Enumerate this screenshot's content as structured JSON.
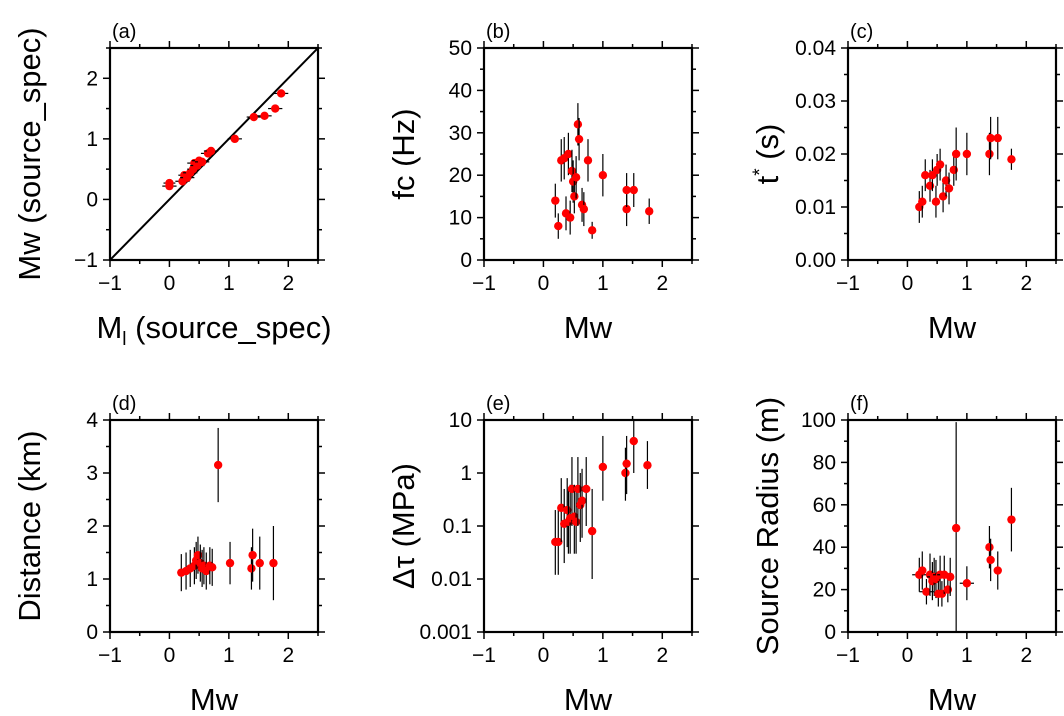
{
  "colors": {
    "point": "#ff0000",
    "axis": "#000000",
    "errorbar": "#000000"
  },
  "chart_data": [
    {
      "id": "a",
      "type": "scatter",
      "panel_label": "(a)",
      "xlabel": "M",
      "xlabel_sub": "l",
      "xlabel_rest": " (source_spec)",
      "ylabel": "Mw (source_spec)",
      "xlim": [
        -1,
        2.5
      ],
      "ylim": [
        -1,
        2.5
      ],
      "yscale": "linear",
      "xticks": [
        -1,
        0,
        1,
        2
      ],
      "xticklabels": [
        "−1",
        "0",
        "1",
        "2"
      ],
      "yticks": [
        -1,
        0,
        1,
        2
      ],
      "yticklabels": [
        "−1",
        "0",
        "1",
        "2"
      ],
      "reference_line": "1:1",
      "points": [
        {
          "x": 0.0,
          "y": 0.22,
          "xe": 0.12,
          "ye": 0.06
        },
        {
          "x": 0.0,
          "y": 0.27,
          "xe": 0.1,
          "ye": 0.06
        },
        {
          "x": 0.22,
          "y": 0.3,
          "xe": 0.12,
          "ye": 0.06
        },
        {
          "x": 0.25,
          "y": 0.4,
          "xe": 0.1,
          "ye": 0.06
        },
        {
          "x": 0.3,
          "y": 0.36,
          "xe": 0.12,
          "ye": 0.06
        },
        {
          "x": 0.35,
          "y": 0.44,
          "xe": 0.12,
          "ye": 0.06
        },
        {
          "x": 0.4,
          "y": 0.5,
          "xe": 0.1,
          "ye": 0.06
        },
        {
          "x": 0.42,
          "y": 0.6,
          "xe": 0.12,
          "ye": 0.06
        },
        {
          "x": 0.47,
          "y": 0.56,
          "xe": 0.12,
          "ye": 0.06
        },
        {
          "x": 0.5,
          "y": 0.64,
          "xe": 0.12,
          "ye": 0.06
        },
        {
          "x": 0.55,
          "y": 0.62,
          "xe": 0.12,
          "ye": 0.06
        },
        {
          "x": 0.65,
          "y": 0.76,
          "xe": 0.12,
          "ye": 0.06
        },
        {
          "x": 0.7,
          "y": 0.8,
          "xe": 0.12,
          "ye": 0.06
        },
        {
          "x": 1.1,
          "y": 1.0,
          "xe": 0.12,
          "ye": 0.06
        },
        {
          "x": 1.42,
          "y": 1.36,
          "xe": 0.12,
          "ye": 0.06
        },
        {
          "x": 1.6,
          "y": 1.38,
          "xe": 0.12,
          "ye": 0.06
        },
        {
          "x": 1.78,
          "y": 1.5,
          "xe": 0.12,
          "ye": 0.06
        },
        {
          "x": 1.88,
          "y": 1.75,
          "xe": 0.12,
          "ye": 0.06
        }
      ]
    },
    {
      "id": "b",
      "type": "scatter",
      "panel_label": "(b)",
      "xlabel": "Mw",
      "ylabel": "fc (Hz)",
      "xlim": [
        -1,
        2.5
      ],
      "ylim": [
        0,
        50
      ],
      "yscale": "linear",
      "xticks": [
        -1,
        0,
        1,
        2
      ],
      "xticklabels": [
        "−1",
        "0",
        "1",
        "2"
      ],
      "yticks": [
        0,
        10,
        20,
        30,
        40,
        50
      ],
      "yticklabels": [
        "0",
        "10",
        "20",
        "30",
        "40",
        "50"
      ],
      "points": [
        {
          "x": 0.2,
          "y": 14,
          "xe": 0.05,
          "ye": 4
        },
        {
          "x": 0.25,
          "y": 8,
          "xe": 0.05,
          "ye": 3
        },
        {
          "x": 0.3,
          "y": 23.5,
          "xe": 0.05,
          "ye": 5
        },
        {
          "x": 0.35,
          "y": 24,
          "xe": 0.05,
          "ye": 5
        },
        {
          "x": 0.38,
          "y": 11,
          "xe": 0.05,
          "ye": 4
        },
        {
          "x": 0.42,
          "y": 25,
          "xe": 0.05,
          "ye": 5
        },
        {
          "x": 0.45,
          "y": 10,
          "xe": 0.05,
          "ye": 4
        },
        {
          "x": 0.48,
          "y": 21,
          "xe": 0.05,
          "ye": 5
        },
        {
          "x": 0.5,
          "y": 18.5,
          "xe": 0.05,
          "ye": 5
        },
        {
          "x": 0.52,
          "y": 15,
          "xe": 0.05,
          "ye": 4
        },
        {
          "x": 0.55,
          "y": 19.5,
          "xe": 0.05,
          "ye": 5
        },
        {
          "x": 0.58,
          "y": 32,
          "xe": 0.05,
          "ye": 5
        },
        {
          "x": 0.6,
          "y": 28.5,
          "xe": 0.05,
          "ye": 5
        },
        {
          "x": 0.65,
          "y": 13,
          "xe": 0.05,
          "ye": 4
        },
        {
          "x": 0.68,
          "y": 12,
          "xe": 0.05,
          "ye": 4
        },
        {
          "x": 0.75,
          "y": 23.5,
          "xe": 0.05,
          "ye": 5
        },
        {
          "x": 0.82,
          "y": 7,
          "xe": 0.05,
          "ye": 2
        },
        {
          "x": 1.0,
          "y": 20,
          "xe": 0.05,
          "ye": 5
        },
        {
          "x": 1.4,
          "y": 12,
          "xe": 0.05,
          "ye": 4
        },
        {
          "x": 1.4,
          "y": 16.5,
          "xe": 0.05,
          "ye": 4
        },
        {
          "x": 1.52,
          "y": 16.5,
          "xe": 0.05,
          "ye": 4
        },
        {
          "x": 1.78,
          "y": 11.5,
          "xe": 0.05,
          "ye": 3
        }
      ]
    },
    {
      "id": "c",
      "type": "scatter",
      "panel_label": "(c)",
      "xlabel": "Mw",
      "ylabel": "t",
      "ylabel_sup": "*",
      "ylabel_rest": " (s)",
      "xlim": [
        -1,
        2.5
      ],
      "ylim": [
        0,
        0.04
      ],
      "yscale": "linear",
      "xticks": [
        -1,
        0,
        1,
        2
      ],
      "xticklabels": [
        "−1",
        "0",
        "1",
        "2"
      ],
      "yticks": [
        0,
        0.01,
        0.02,
        0.03,
        0.04
      ],
      "yticklabels": [
        "0.00",
        "0.01",
        "0.02",
        "0.03",
        "0.04"
      ],
      "points": [
        {
          "x": 0.2,
          "y": 0.01,
          "xe": 0.05,
          "ye": 0.003
        },
        {
          "x": 0.25,
          "y": 0.011,
          "xe": 0.05,
          "ye": 0.003
        },
        {
          "x": 0.3,
          "y": 0.016,
          "xe": 0.05,
          "ye": 0.003
        },
        {
          "x": 0.38,
          "y": 0.014,
          "xe": 0.05,
          "ye": 0.003
        },
        {
          "x": 0.42,
          "y": 0.016,
          "xe": 0.05,
          "ye": 0.003
        },
        {
          "x": 0.48,
          "y": 0.011,
          "xe": 0.05,
          "ye": 0.003
        },
        {
          "x": 0.5,
          "y": 0.017,
          "xe": 0.05,
          "ye": 0.003
        },
        {
          "x": 0.55,
          "y": 0.018,
          "xe": 0.05,
          "ye": 0.003
        },
        {
          "x": 0.6,
          "y": 0.012,
          "xe": 0.05,
          "ye": 0.003
        },
        {
          "x": 0.65,
          "y": 0.015,
          "xe": 0.05,
          "ye": 0.003
        },
        {
          "x": 0.7,
          "y": 0.0135,
          "xe": 0.05,
          "ye": 0.003
        },
        {
          "x": 0.78,
          "y": 0.017,
          "xe": 0.05,
          "ye": 0.003
        },
        {
          "x": 0.82,
          "y": 0.02,
          "xe": 0.05,
          "ye": 0.005
        },
        {
          "x": 1.0,
          "y": 0.02,
          "xe": 0.05,
          "ye": 0.004
        },
        {
          "x": 1.38,
          "y": 0.02,
          "xe": 0.05,
          "ye": 0.004
        },
        {
          "x": 1.4,
          "y": 0.023,
          "xe": 0.05,
          "ye": 0.004
        },
        {
          "x": 1.52,
          "y": 0.023,
          "xe": 0.05,
          "ye": 0.004
        },
        {
          "x": 1.75,
          "y": 0.019,
          "xe": 0.05,
          "ye": 0.002
        }
      ]
    },
    {
      "id": "d",
      "type": "scatter",
      "panel_label": "(d)",
      "xlabel": "Mw",
      "ylabel": "Distance (km)",
      "xlim": [
        -1,
        2.5
      ],
      "ylim": [
        0,
        4
      ],
      "yscale": "linear",
      "xticks": [
        -1,
        0,
        1,
        2
      ],
      "xticklabels": [
        "−1",
        "0",
        "1",
        "2"
      ],
      "yticks": [
        0,
        1,
        2,
        3,
        4
      ],
      "yticklabels": [
        "0",
        "1",
        "2",
        "3",
        "4"
      ],
      "points": [
        {
          "x": 0.2,
          "y": 1.12,
          "xe": 0.05,
          "ye": 0.35
        },
        {
          "x": 0.28,
          "y": 1.15,
          "xe": 0.05,
          "ye": 0.35
        },
        {
          "x": 0.35,
          "y": 1.2,
          "xe": 0.05,
          "ye": 0.35
        },
        {
          "x": 0.42,
          "y": 1.25,
          "xe": 0.05,
          "ye": 0.35
        },
        {
          "x": 0.45,
          "y": 1.35,
          "xe": 0.05,
          "ye": 0.35
        },
        {
          "x": 0.48,
          "y": 1.45,
          "xe": 0.05,
          "ye": 0.35
        },
        {
          "x": 0.52,
          "y": 1.3,
          "xe": 0.05,
          "ye": 0.35
        },
        {
          "x": 0.55,
          "y": 1.2,
          "xe": 0.05,
          "ye": 0.35
        },
        {
          "x": 0.58,
          "y": 1.25,
          "xe": 0.05,
          "ye": 0.35
        },
        {
          "x": 0.62,
          "y": 1.15,
          "xe": 0.05,
          "ye": 0.35
        },
        {
          "x": 0.68,
          "y": 1.25,
          "xe": 0.05,
          "ye": 0.35
        },
        {
          "x": 0.72,
          "y": 1.22,
          "xe": 0.05,
          "ye": 0.35
        },
        {
          "x": 0.82,
          "y": 3.15,
          "xe": 0.05,
          "ye": 0.7
        },
        {
          "x": 1.02,
          "y": 1.3,
          "xe": 0.05,
          "ye": 0.4
        },
        {
          "x": 1.38,
          "y": 1.2,
          "xe": 0.05,
          "ye": 0.4
        },
        {
          "x": 1.4,
          "y": 1.45,
          "xe": 0.05,
          "ye": 0.5
        },
        {
          "x": 1.52,
          "y": 1.3,
          "xe": 0.05,
          "ye": 0.5
        },
        {
          "x": 1.75,
          "y": 1.3,
          "xe": 0.05,
          "ye": 0.7
        }
      ]
    },
    {
      "id": "e",
      "type": "scatter",
      "panel_label": "(e)",
      "xlabel": "Mw",
      "ylabel": "Δτ (MPa)",
      "xlim": [
        -1,
        2.5
      ],
      "ylim": [
        0.001,
        10
      ],
      "yscale": "log",
      "xticks": [
        -1,
        0,
        1,
        2
      ],
      "xticklabels": [
        "−1",
        "0",
        "1",
        "2"
      ],
      "yticks": [
        0.001,
        0.01,
        0.1,
        1,
        10
      ],
      "yticklabels": [
        "0.001",
        "0.01",
        "0.1",
        "1",
        "10"
      ],
      "points": [
        {
          "x": 0.2,
          "y": 0.05,
          "xe": 0.05,
          "ye_lo": 0.012,
          "ye_hi": 0.2
        },
        {
          "x": 0.25,
          "y": 0.05,
          "xe": 0.05,
          "ye_lo": 0.012,
          "ye_hi": 0.2
        },
        {
          "x": 0.3,
          "y": 0.22,
          "xe": 0.05,
          "ye_lo": 0.05,
          "ye_hi": 0.8
        },
        {
          "x": 0.35,
          "y": 0.11,
          "xe": 0.05,
          "ye_lo": 0.02,
          "ye_hi": 0.5
        },
        {
          "x": 0.4,
          "y": 0.2,
          "xe": 0.05,
          "ye_lo": 0.04,
          "ye_hi": 0.8
        },
        {
          "x": 0.42,
          "y": 0.12,
          "xe": 0.05,
          "ye_lo": 0.03,
          "ye_hi": 0.5
        },
        {
          "x": 0.45,
          "y": 0.14,
          "xe": 0.05,
          "ye_lo": 0.03,
          "ye_hi": 0.6
        },
        {
          "x": 0.48,
          "y": 0.5,
          "xe": 0.05,
          "ye_lo": 0.1,
          "ye_hi": 2
        },
        {
          "x": 0.52,
          "y": 0.15,
          "xe": 0.05,
          "ye_lo": 0.03,
          "ye_hi": 0.6
        },
        {
          "x": 0.55,
          "y": 0.12,
          "xe": 0.05,
          "ye_lo": 0.03,
          "ye_hi": 0.5
        },
        {
          "x": 0.58,
          "y": 0.5,
          "xe": 0.05,
          "ye_lo": 0.1,
          "ye_hi": 2
        },
        {
          "x": 0.62,
          "y": 0.25,
          "xe": 0.05,
          "ye_lo": 0.05,
          "ye_hi": 1
        },
        {
          "x": 0.65,
          "y": 0.3,
          "xe": 0.05,
          "ye_lo": 0.06,
          "ye_hi": 1.2
        },
        {
          "x": 0.72,
          "y": 0.5,
          "xe": 0.05,
          "ye_lo": 0.1,
          "ye_hi": 2
        },
        {
          "x": 0.82,
          "y": 0.08,
          "xe": 0.05,
          "ye_lo": 0.01,
          "ye_hi": 0.5
        },
        {
          "x": 1.0,
          "y": 1.3,
          "xe": 0.05,
          "ye_lo": 0.3,
          "ye_hi": 5
        },
        {
          "x": 1.38,
          "y": 1.0,
          "xe": 0.05,
          "ye_lo": 0.3,
          "ye_hi": 3
        },
        {
          "x": 1.4,
          "y": 1.5,
          "xe": 0.05,
          "ye_lo": 0.4,
          "ye_hi": 5
        },
        {
          "x": 1.52,
          "y": 4.0,
          "xe": 0.05,
          "ye_lo": 1,
          "ye_hi": 10
        },
        {
          "x": 1.75,
          "y": 1.4,
          "xe": 0.05,
          "ye_lo": 0.5,
          "ye_hi": 4
        }
      ]
    },
    {
      "id": "f",
      "type": "scatter",
      "panel_label": "(f)",
      "xlabel": "Mw",
      "ylabel": "Source Radius (m)",
      "xlim": [
        -1,
        2.5
      ],
      "ylim": [
        0,
        100
      ],
      "yscale": "linear",
      "xticks": [
        -1,
        0,
        1,
        2
      ],
      "xticklabels": [
        "−1",
        "0",
        "1",
        "2"
      ],
      "yticks": [
        0,
        20,
        40,
        60,
        80,
        100
      ],
      "yticklabels": [
        "0",
        "20",
        "40",
        "60",
        "80",
        "100"
      ],
      "points": [
        {
          "x": 0.2,
          "y": 27,
          "xe": 0.12,
          "ye": 8
        },
        {
          "x": 0.25,
          "y": 29,
          "xe": 0.05,
          "ye": 9
        },
        {
          "x": 0.32,
          "y": 19,
          "xe": 0.12,
          "ye": 6
        },
        {
          "x": 0.38,
          "y": 27,
          "xe": 0.05,
          "ye": 10
        },
        {
          "x": 0.42,
          "y": 24,
          "xe": 0.05,
          "ye": 9
        },
        {
          "x": 0.45,
          "y": 26,
          "xe": 0.12,
          "ye": 9
        },
        {
          "x": 0.48,
          "y": 25,
          "xe": 0.05,
          "ye": 9
        },
        {
          "x": 0.52,
          "y": 18,
          "xe": 0.05,
          "ye": 6
        },
        {
          "x": 0.55,
          "y": 27,
          "xe": 0.12,
          "ye": 9
        },
        {
          "x": 0.58,
          "y": 18,
          "xe": 0.05,
          "ye": 6
        },
        {
          "x": 0.62,
          "y": 27,
          "xe": 0.12,
          "ye": 9
        },
        {
          "x": 0.68,
          "y": 20,
          "xe": 0.05,
          "ye": 6
        },
        {
          "x": 0.72,
          "y": 26,
          "xe": 0.05,
          "ye": 9
        },
        {
          "x": 0.82,
          "y": 49,
          "xe": 0.05,
          "ye": 50
        },
        {
          "x": 1.0,
          "y": 23,
          "xe": 0.12,
          "ye": 8
        },
        {
          "x": 1.38,
          "y": 40,
          "xe": 0.05,
          "ye": 10
        },
        {
          "x": 1.4,
          "y": 34,
          "xe": 0.05,
          "ye": 10
        },
        {
          "x": 1.52,
          "y": 29,
          "xe": 0.05,
          "ye": 9
        },
        {
          "x": 1.75,
          "y": 53,
          "xe": 0.05,
          "ye": 15
        }
      ]
    }
  ]
}
